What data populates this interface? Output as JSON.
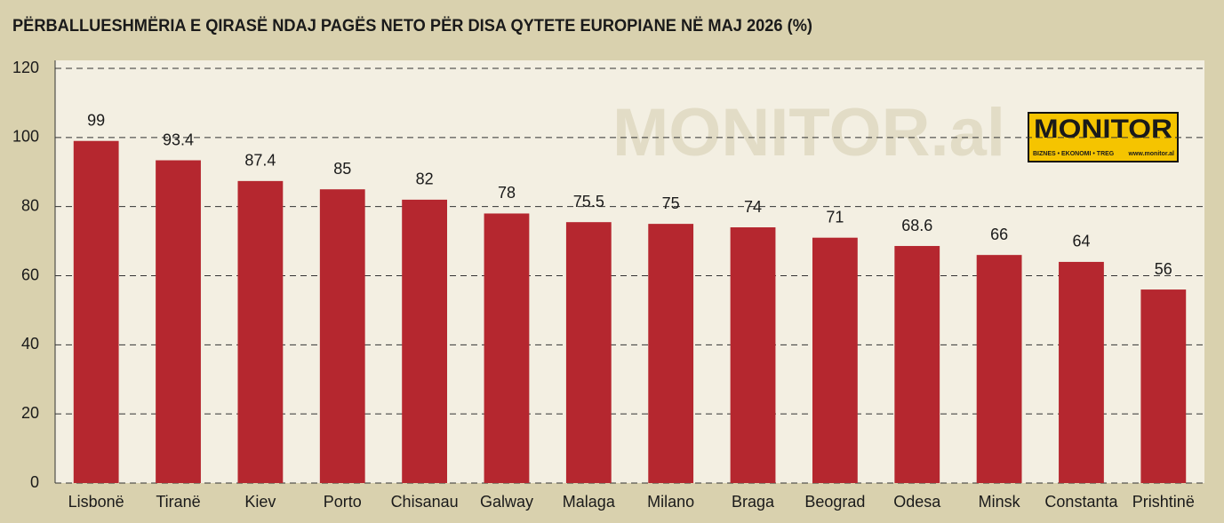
{
  "chart_data": {
    "type": "bar",
    "title": "PËRBALLUESHMËRIA E QIRASË NDAJ PAGËS NETO PËR DISA QYTETE EUROPIANE NË MAJ 2026 (%)",
    "categories": [
      "Lisbonë",
      "Tiranë",
      "Kiev",
      "Porto",
      "Chisanau",
      "Galway",
      "Malaga",
      "Milano",
      "Braga",
      "Beograd",
      "Odesa",
      "Minsk",
      "Constanta",
      "Prishtinë"
    ],
    "values": [
      99,
      93.4,
      87.4,
      85,
      82,
      78,
      75.5,
      75,
      74,
      71,
      68.6,
      66,
      64,
      56
    ],
    "color": "#b5272f",
    "ylim": [
      0,
      120
    ],
    "yticks": [
      0,
      20,
      40,
      60,
      80,
      100,
      120
    ],
    "grid": true,
    "watermark": "MONITOR.al",
    "logo": {
      "name": "MONITOR",
      "tagline": "BIZNES • EKONOMI • TREG",
      "url": "www.monitor.al"
    }
  }
}
